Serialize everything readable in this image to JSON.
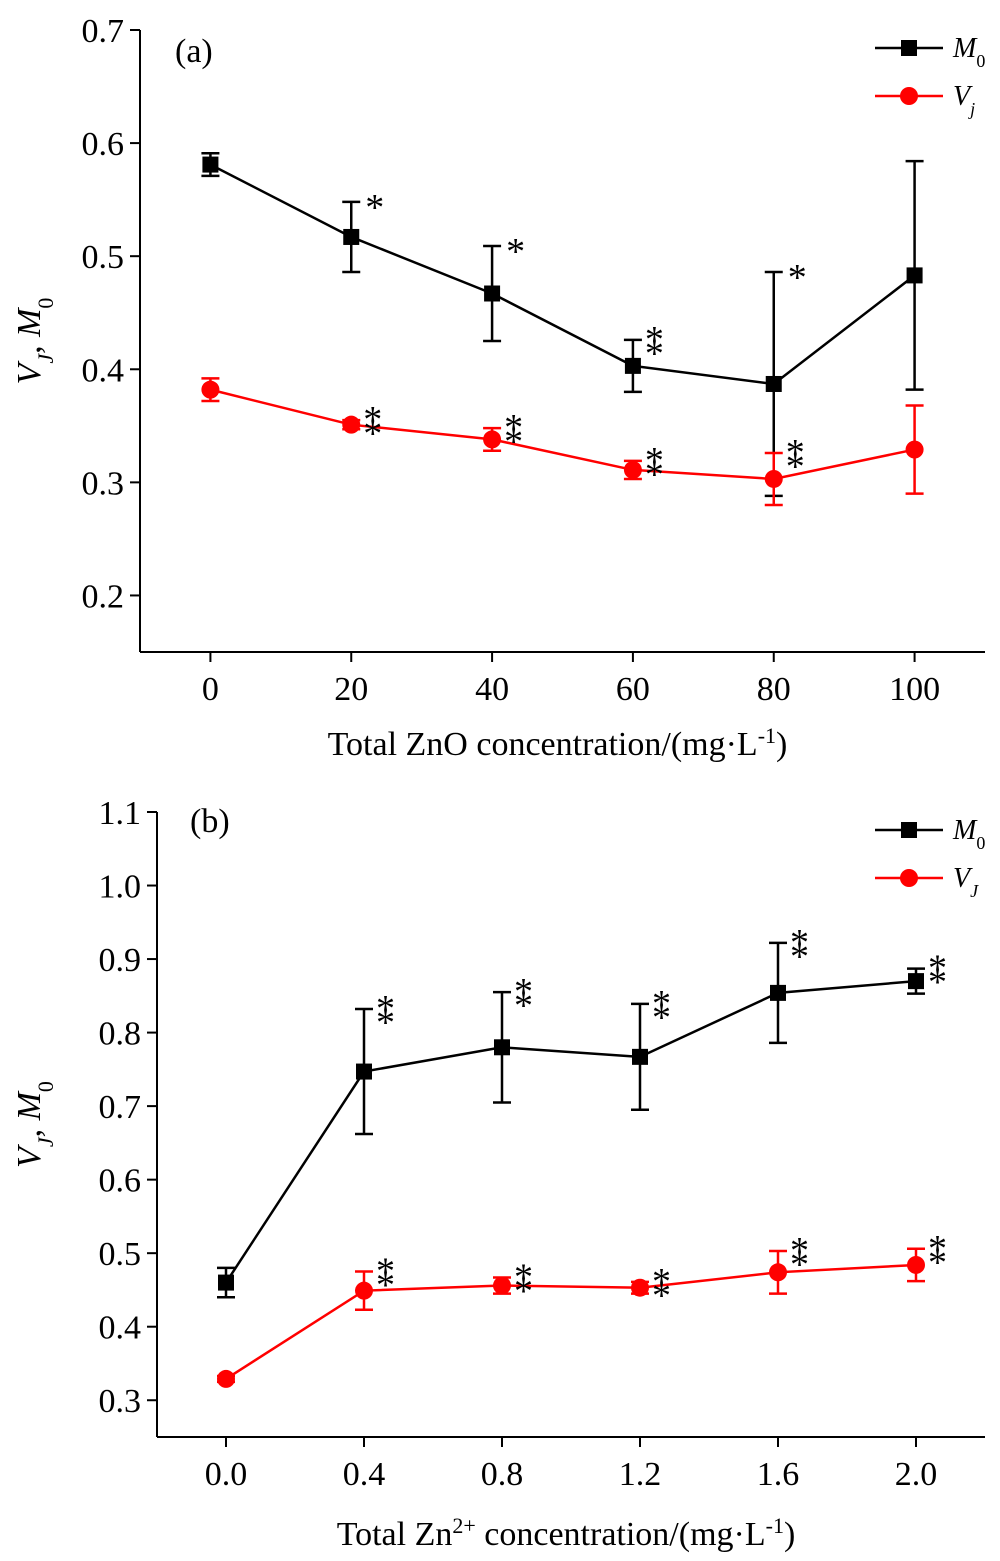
{
  "chart_data": [
    {
      "type": "line",
      "panel_label": "(a)",
      "xlabel": {
        "main": "Total ZnO concentration/(mg·L",
        "sup": "-1",
        "end": ")"
      },
      "ylabel": "V_J, M_0",
      "xlim": [
        -10,
        110
      ],
      "ylim": [
        0.15,
        0.7
      ],
      "x_ticks": [
        0,
        20,
        40,
        60,
        80,
        100
      ],
      "x_tick_labels": [
        "0",
        "20",
        "40",
        "60",
        "80",
        "100"
      ],
      "y_ticks": [
        0.2,
        0.3,
        0.4,
        0.5,
        0.6,
        0.7
      ],
      "y_tick_labels": [
        "0.2",
        "0.3",
        "0.4",
        "0.5",
        "0.6",
        "0.7"
      ],
      "x": [
        0,
        20,
        40,
        60,
        80,
        100
      ],
      "legend_position": "top-right",
      "series": [
        {
          "name": "M0",
          "name_base": "M",
          "name_sub": "0",
          "color": "#000000",
          "marker": "square",
          "values": [
            0.581,
            0.517,
            0.467,
            0.403,
            0.387,
            0.483
          ],
          "errors": [
            0.01,
            0.031,
            0.042,
            0.023,
            0.099,
            0.101
          ],
          "significance": [
            "",
            "*",
            "*",
            "**",
            "*",
            ""
          ]
        },
        {
          "name": "Vj",
          "name_base": "V",
          "name_sub": "j",
          "color": "#ff0000",
          "marker": "circle",
          "values": [
            0.382,
            0.351,
            0.338,
            0.311,
            0.303,
            0.329
          ],
          "errors": [
            0.01,
            0.004,
            0.01,
            0.008,
            0.023,
            0.039
          ],
          "significance": [
            "",
            "**",
            "**",
            "**",
            "**",
            ""
          ]
        }
      ]
    },
    {
      "type": "line",
      "panel_label": "(b)",
      "xlabel": {
        "main": "Total Zn",
        "sup": "2+",
        "end": " concentration/(mg·L",
        "sup2": "-1",
        "end2": ")"
      },
      "ylabel": "V_J, M_0",
      "xlim": [
        -0.2,
        2.2
      ],
      "ylim": [
        0.25,
        1.1
      ],
      "x_ticks": [
        0,
        0.4,
        0.8,
        1.2,
        1.6,
        2.0
      ],
      "x_tick_labels": [
        "0.0",
        "0.4",
        "0.8",
        "1.2",
        "1.6",
        "2.0"
      ],
      "y_ticks": [
        0.3,
        0.4,
        0.5,
        0.6,
        0.7,
        0.8,
        0.9,
        1.0,
        1.1
      ],
      "y_tick_labels": [
        "0.3",
        "0.4",
        "0.5",
        "0.6",
        "0.7",
        "0.8",
        "0.9",
        "1.0",
        "1.1"
      ],
      "x": [
        0,
        0.4,
        0.8,
        1.2,
        1.6,
        2.0
      ],
      "legend_position": "top-right",
      "series": [
        {
          "name": "M0",
          "name_base": "M",
          "name_sub": "0",
          "color": "#000000",
          "marker": "square",
          "values": [
            0.46,
            0.747,
            0.78,
            0.767,
            0.854,
            0.87
          ],
          "errors": [
            0.02,
            0.085,
            0.075,
            0.072,
            0.068,
            0.017
          ],
          "significance": [
            "",
            "**",
            "**",
            "**",
            "**",
            "**"
          ]
        },
        {
          "name": "VJ",
          "name_base": "V",
          "name_sub": "J",
          "color": "#ff0000",
          "marker": "circle",
          "values": [
            0.329,
            0.449,
            0.456,
            0.453,
            0.474,
            0.484
          ],
          "errors": [
            0.004,
            0.026,
            0.011,
            0.008,
            0.029,
            0.022
          ],
          "significance": [
            "",
            "**",
            "**",
            "**",
            "**",
            "**"
          ]
        }
      ]
    }
  ]
}
